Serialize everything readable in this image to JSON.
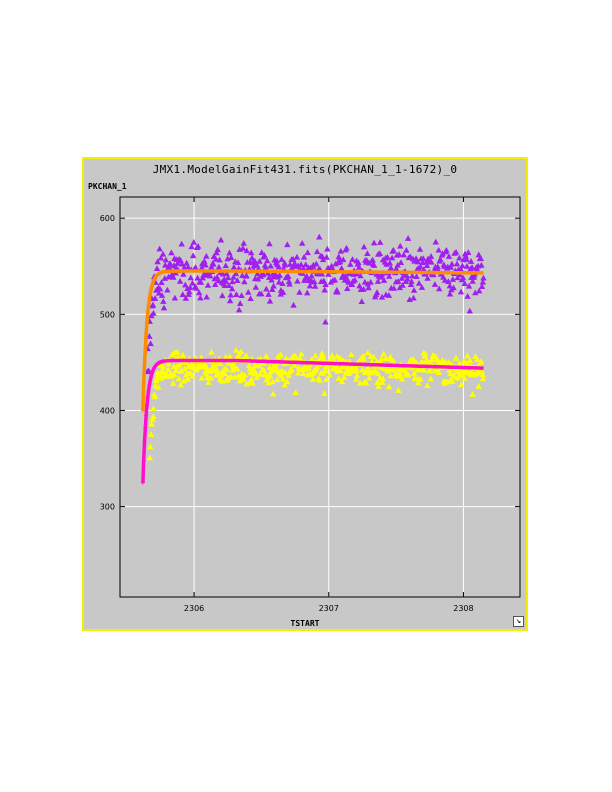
{
  "window": {
    "title": "JMX1.ModelGainFit431.fits(PKCHAN_1_1-1672)_0",
    "resize_icon": "resize-arrow-icon"
  },
  "colors": {
    "window_border": "#f0f000",
    "plot_background": "#c8c8c8",
    "series1_points": "#a020f0",
    "series1_fit": "#ff8c00",
    "series2_points": "#ffff00",
    "series2_fit": "#ff10c8"
  },
  "chart_data": {
    "type": "scatter",
    "title": "JMX1.ModelGainFit431.fits(PKCHAN_1_1-1672)_0",
    "xlabel": "TSTART",
    "ylabel": "PKCHAN_1",
    "xlim": [
      2305.45,
      2308.42
    ],
    "ylim": [
      206,
      622
    ],
    "x_ticks": [
      2306,
      2307,
      2308
    ],
    "y_ticks": [
      300,
      400,
      500,
      600
    ],
    "grid": true,
    "series": [
      {
        "kind": "points",
        "marker": "triangle",
        "color": "#a020f0",
        "x_range": [
          2305.65,
          2308.15
        ],
        "rise_start": 2305.65,
        "y_start": 415,
        "y_plateau": 545,
        "rise_tau": 0.03,
        "scatter": 14
      },
      {
        "kind": "fit",
        "marker": "plus-line",
        "color": "#ff8c00",
        "x_range": [
          2305.62,
          2308.15
        ],
        "y_start": 400,
        "y_plateau": 545,
        "rise_tau": 0.03,
        "late_value": 543
      },
      {
        "kind": "points",
        "marker": "triangle",
        "color": "#ffff00",
        "x_range": [
          2305.67,
          2308.15
        ],
        "y_start": 345,
        "y_plateau": 445,
        "rise_tau": 0.03,
        "scatter": 8
      },
      {
        "kind": "fit",
        "marker": "plus-line",
        "color": "#ff10c8",
        "x_range": [
          2305.62,
          2308.15
        ],
        "y_start": 325,
        "y_plateau": 452,
        "rise_tau": 0.03,
        "late_value": 444
      }
    ]
  }
}
